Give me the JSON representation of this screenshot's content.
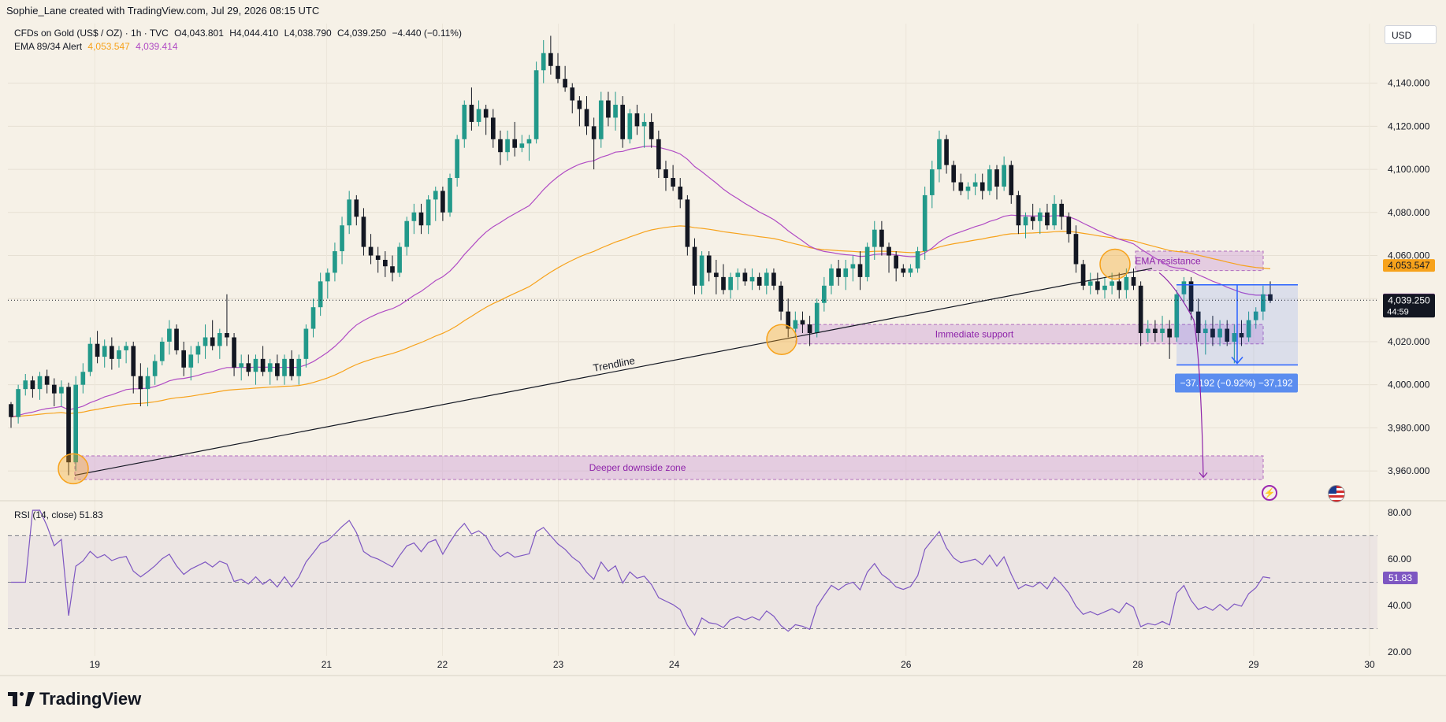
{
  "header": {
    "attribution": "Sophie_Lane created with TradingView.com, Jul 29, 2026 08:15 UTC",
    "currency": "USD",
    "brand": "TradingView"
  },
  "legend": {
    "symbol": "CFDs on Gold (US$ / OZ) · 1h · TVC",
    "open": "O4,043.801",
    "high": "H4,044.410",
    "low": "L4,038.790",
    "close": "C4,039.250",
    "change": "−4.440 (−0.11%)",
    "ema_label": "EMA 89/34 Alert",
    "ema_slow_value": "4,053.547",
    "ema_fast_value": "4,039.414",
    "rsi_label": "RSI (14, close)",
    "rsi_value": "51.83"
  },
  "price_badges": {
    "ema_slow": "4,053.547",
    "ema_fast": "4,039.414",
    "last_price": "4,039.250",
    "countdown": "44:59",
    "rsi": "51.83"
  },
  "annotations": {
    "ema_resistance": "EMA resistance",
    "immediate_support": "Immediate support",
    "deeper_downside": "Deeper downside zone",
    "trendline": "Trendline",
    "measure": "−37.192 (−0.92%) −37,192"
  },
  "colors": {
    "up": "#22998a",
    "down": "#131722",
    "ema_slow": "#f7a21b",
    "ema_fast": "#b04bc4",
    "zone": "#cf9fd6",
    "rsi_line": "#7e57c2",
    "measure": "#2962ff"
  },
  "chart_data": {
    "type": "candlestick",
    "price_axis": {
      "ticks": [
        3960,
        3980,
        4000,
        4020,
        4040,
        4060,
        4080,
        4100,
        4120,
        4140
      ],
      "tick_labels": [
        "3,960.000",
        "3,980.000",
        "4,000.000",
        "4,020.000",
        "4,040.000",
        "4,060.000",
        "4,080.000",
        "4,100.000",
        "4,120.000",
        "4,140.000"
      ],
      "range": [
        3952,
        4164
      ]
    },
    "time_axis": {
      "labels": [
        "19",
        "21",
        "22",
        "23",
        "24",
        "26",
        "28",
        "29",
        "30"
      ],
      "label_days": [
        19,
        21,
        22,
        23,
        24,
        26,
        28,
        29,
        30
      ],
      "range_days": [
        18.25,
        30
      ]
    },
    "ohlc": [
      [
        3991,
        3992,
        3980,
        3985
      ],
      [
        3985,
        4000,
        3982,
        3998
      ],
      [
        3998,
        4005,
        3995,
        4002
      ],
      [
        4002,
        4004,
        3994,
        3998
      ],
      [
        3998,
        4006,
        3993,
        4004
      ],
      [
        4004,
        4007,
        3996,
        4000
      ],
      [
        4000,
        4003,
        3990,
        3996
      ],
      [
        3996,
        4002,
        3990,
        3999
      ],
      [
        3999,
        4001,
        3958,
        3964
      ],
      [
        3964,
        4004,
        3960,
        4000
      ],
      [
        4000,
        4010,
        3996,
        4006
      ],
      [
        4006,
        4022,
        4004,
        4019
      ],
      [
        4019,
        4025,
        4010,
        4013
      ],
      [
        4013,
        4021,
        4008,
        4018
      ],
      [
        4018,
        4022,
        4007,
        4012
      ],
      [
        4012,
        4018,
        4008,
        4016
      ],
      [
        4016,
        4020,
        4010,
        4018
      ],
      [
        4018,
        4020,
        3996,
        4004
      ],
      [
        4004,
        4010,
        3990,
        3998
      ],
      [
        3998,
        4008,
        3990,
        4004
      ],
      [
        4004,
        4014,
        4000,
        4011
      ],
      [
        4011,
        4022,
        4009,
        4020
      ],
      [
        4020,
        4030,
        4014,
        4026
      ],
      [
        4026,
        4028,
        4014,
        4016
      ],
      [
        4016,
        4020,
        4004,
        4008
      ],
      [
        4008,
        4018,
        4002,
        4014
      ],
      [
        4014,
        4020,
        4010,
        4018
      ],
      [
        4018,
        4028,
        4012,
        4022
      ],
      [
        4022,
        4030,
        4016,
        4018
      ],
      [
        4018,
        4026,
        4012,
        4024
      ],
      [
        4024,
        4042,
        4018,
        4022
      ],
      [
        4022,
        4024,
        4004,
        4008
      ],
      [
        4008,
        4014,
        4002,
        4010
      ],
      [
        4010,
        4014,
        4004,
        4006
      ],
      [
        4006,
        4014,
        4000,
        4012
      ],
      [
        4012,
        4018,
        4004,
        4006
      ],
      [
        4006,
        4012,
        4000,
        4010
      ],
      [
        4010,
        4014,
        4002,
        4004
      ],
      [
        4004,
        4014,
        4000,
        4012
      ],
      [
        4012,
        4016,
        4002,
        4004
      ],
      [
        4004,
        4014,
        4000,
        4012
      ],
      [
        4012,
        4028,
        4008,
        4026
      ],
      [
        4026,
        4040,
        4022,
        4036
      ],
      [
        4036,
        4052,
        4032,
        4048
      ],
      [
        4048,
        4054,
        4040,
        4052
      ],
      [
        4052,
        4066,
        4048,
        4062
      ],
      [
        4062,
        4078,
        4056,
        4074
      ],
      [
        4074,
        4090,
        4070,
        4086
      ],
      [
        4086,
        4088,
        4074,
        4078
      ],
      [
        4078,
        4082,
        4060,
        4064
      ],
      [
        4064,
        4070,
        4056,
        4060
      ],
      [
        4060,
        4064,
        4052,
        4058
      ],
      [
        4058,
        4062,
        4050,
        4055
      ],
      [
        4055,
        4060,
        4048,
        4052
      ],
      [
        4052,
        4066,
        4050,
        4064
      ],
      [
        4064,
        4078,
        4060,
        4076
      ],
      [
        4076,
        4084,
        4070,
        4080
      ],
      [
        4080,
        4084,
        4070,
        4074
      ],
      [
        4074,
        4088,
        4070,
        4086
      ],
      [
        4086,
        4092,
        4076,
        4090
      ],
      [
        4090,
        4092,
        4076,
        4080
      ],
      [
        4080,
        4098,
        4078,
        4096
      ],
      [
        4096,
        4116,
        4092,
        4114
      ],
      [
        4114,
        4132,
        4110,
        4130
      ],
      [
        4130,
        4138,
        4118,
        4122
      ],
      [
        4122,
        4132,
        4120,
        4128
      ],
      [
        4128,
        4130,
        4116,
        4124
      ],
      [
        4124,
        4128,
        4110,
        4114
      ],
      [
        4114,
        4118,
        4102,
        4108
      ],
      [
        4108,
        4118,
        4104,
        4114
      ],
      [
        4114,
        4122,
        4106,
        4110
      ],
      [
        4110,
        4116,
        4108,
        4112
      ],
      [
        4112,
        4116,
        4104,
        4114
      ],
      [
        4114,
        4150,
        4112,
        4146
      ],
      [
        4146,
        4160,
        4140,
        4154
      ],
      [
        4154,
        4162,
        4144,
        4148
      ],
      [
        4148,
        4154,
        4140,
        4142
      ],
      [
        4142,
        4148,
        4136,
        4138
      ],
      [
        4138,
        4140,
        4126,
        4132
      ],
      [
        4132,
        4134,
        4120,
        4128
      ],
      [
        4128,
        4134,
        4116,
        4120
      ],
      [
        4120,
        4124,
        4100,
        4114
      ],
      [
        4114,
        4136,
        4110,
        4132
      ],
      [
        4132,
        4136,
        4120,
        4124
      ],
      [
        4124,
        4136,
        4118,
        4130
      ],
      [
        4130,
        4134,
        4110,
        4114
      ],
      [
        4114,
        4128,
        4112,
        4126
      ],
      [
        4126,
        4130,
        4116,
        4120
      ],
      [
        4120,
        4126,
        4110,
        4122
      ],
      [
        4122,
        4126,
        4110,
        4114
      ],
      [
        4114,
        4118,
        4096,
        4100
      ],
      [
        4100,
        4104,
        4090,
        4096
      ],
      [
        4096,
        4102,
        4090,
        4092
      ],
      [
        4092,
        4096,
        4082,
        4086
      ],
      [
        4086,
        4088,
        4060,
        4064
      ],
      [
        4064,
        4068,
        4042,
        4046
      ],
      [
        4046,
        4062,
        4042,
        4060
      ],
      [
        4060,
        4062,
        4048,
        4052
      ],
      [
        4052,
        4058,
        4042,
        4050
      ],
      [
        4050,
        4056,
        4042,
        4044
      ],
      [
        4044,
        4052,
        4040,
        4050
      ],
      [
        4050,
        4054,
        4044,
        4052
      ],
      [
        4052,
        4054,
        4046,
        4048
      ],
      [
        4048,
        4054,
        4044,
        4050
      ],
      [
        4050,
        4052,
        4044,
        4046
      ],
      [
        4046,
        4054,
        4042,
        4052
      ],
      [
        4052,
        4054,
        4044,
        4046
      ],
      [
        4046,
        4048,
        4030,
        4034
      ],
      [
        4034,
        4040,
        4022,
        4026
      ],
      [
        4026,
        4034,
        4022,
        4030
      ],
      [
        4030,
        4034,
        4024,
        4028
      ],
      [
        4028,
        4032,
        4018,
        4024
      ],
      [
        4024,
        4040,
        4022,
        4038
      ],
      [
        4038,
        4050,
        4034,
        4046
      ],
      [
        4046,
        4056,
        4042,
        4054
      ],
      [
        4054,
        4058,
        4046,
        4050
      ],
      [
        4050,
        4058,
        4044,
        4054
      ],
      [
        4054,
        4060,
        4048,
        4056
      ],
      [
        4056,
        4062,
        4044,
        4050
      ],
      [
        4050,
        4066,
        4048,
        4064
      ],
      [
        4064,
        4076,
        4058,
        4072
      ],
      [
        4072,
        4076,
        4060,
        4064
      ],
      [
        4064,
        4066,
        4052,
        4060
      ],
      [
        4060,
        4062,
        4048,
        4054
      ],
      [
        4054,
        4056,
        4050,
        4052
      ],
      [
        4052,
        4056,
        4050,
        4054
      ],
      [
        4054,
        4064,
        4052,
        4062
      ],
      [
        4062,
        4092,
        4058,
        4088
      ],
      [
        4088,
        4104,
        4082,
        4100
      ],
      [
        4100,
        4118,
        4094,
        4114
      ],
      [
        4114,
        4116,
        4098,
        4102
      ],
      [
        4102,
        4104,
        4090,
        4094
      ],
      [
        4094,
        4098,
        4088,
        4090
      ],
      [
        4090,
        4094,
        4086,
        4092
      ],
      [
        4092,
        4098,
        4088,
        4094
      ],
      [
        4094,
        4098,
        4086,
        4090
      ],
      [
        4090,
        4102,
        4088,
        4100
      ],
      [
        4100,
        4102,
        4086,
        4092
      ],
      [
        4092,
        4106,
        4090,
        4102
      ],
      [
        4102,
        4104,
        4084,
        4088
      ],
      [
        4088,
        4090,
        4070,
        4074
      ],
      [
        4074,
        4080,
        4068,
        4078
      ],
      [
        4078,
        4084,
        4072,
        4076
      ],
      [
        4076,
        4082,
        4070,
        4080
      ],
      [
        4080,
        4084,
        4072,
        4074
      ],
      [
        4074,
        4088,
        4072,
        4084
      ],
      [
        4084,
        4086,
        4072,
        4078
      ],
      [
        4078,
        4080,
        4066,
        4070
      ],
      [
        4070,
        4074,
        4052,
        4056
      ],
      [
        4056,
        4058,
        4044,
        4046
      ],
      [
        4046,
        4052,
        4042,
        4048
      ],
      [
        4048,
        4052,
        4042,
        4044
      ],
      [
        4044,
        4050,
        4040,
        4046
      ],
      [
        4046,
        4052,
        4042,
        4048
      ],
      [
        4048,
        4052,
        4040,
        4044
      ],
      [
        4044,
        4054,
        4040,
        4050
      ],
      [
        4050,
        4054,
        4044,
        4046
      ],
      [
        4046,
        4048,
        4018,
        4024
      ],
      [
        4024,
        4030,
        4020,
        4026
      ],
      [
        4026,
        4030,
        4020,
        4024
      ],
      [
        4024,
        4032,
        4020,
        4026
      ],
      [
        4026,
        4030,
        4012,
        4022
      ],
      [
        4022,
        4044,
        4020,
        4042
      ],
      [
        4042,
        4050,
        4038,
        4048
      ],
      [
        4048,
        4050,
        4030,
        4034
      ],
      [
        4034,
        4040,
        4020,
        4024
      ],
      [
        4024,
        4030,
        4014,
        4026
      ],
      [
        4026,
        4032,
        4018,
        4022
      ],
      [
        4022,
        4030,
        4018,
        4026
      ],
      [
        4026,
        4030,
        4018,
        4020
      ],
      [
        4020,
        4028,
        4010,
        4024
      ],
      [
        4024,
        4030,
        4018,
        4022
      ],
      [
        4022,
        4034,
        4020,
        4030
      ],
      [
        4030,
        4036,
        4026,
        4034
      ],
      [
        4034,
        4046,
        4030,
        4042
      ],
      [
        4042,
        4048,
        4038,
        4039
      ]
    ],
    "ema_slow_value": 4053.547,
    "ema_fast_value": 4039.414,
    "last_price": 4039.25,
    "zones": [
      {
        "label": "EMA resistance",
        "from": 4053,
        "to": 4062
      },
      {
        "label": "Immediate support",
        "from": 4019,
        "to": 4028
      },
      {
        "label": "Deeper downside zone",
        "from": 3956,
        "to": 3967
      }
    ],
    "measure": {
      "from": 4046.4,
      "to": 4009.2,
      "change": "−37.192 (−0.92%) −37,192"
    },
    "rsi": {
      "ticks": [
        20,
        40,
        60,
        80
      ],
      "tick_labels": [
        "20.00",
        "40.00",
        "60.00",
        "80.00"
      ],
      "range": [
        20,
        82
      ],
      "upper_band": 70,
      "middle": 50,
      "lower_band": 30,
      "last": 51.83
    }
  }
}
